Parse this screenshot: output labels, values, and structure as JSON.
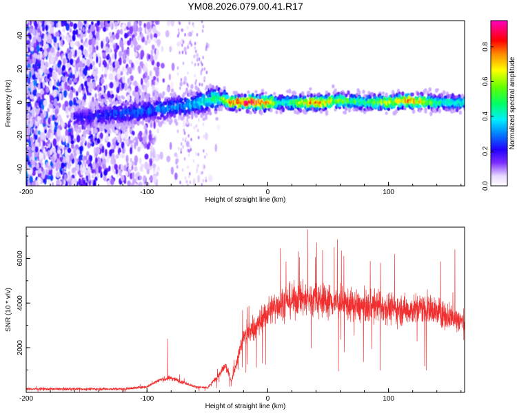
{
  "chart_data": [
    {
      "type": "heatmap",
      "title": "YM08.2026.079.00.41.R17",
      "xlabel": "Height of straight line (km)",
      "ylabel": "Frequency (Hz)",
      "xlim": [
        -200,
        163
      ],
      "ylim": [
        -50,
        49
      ],
      "xticks": [
        -200,
        -100,
        0,
        100
      ],
      "yticks": [
        -40,
        -20,
        0,
        20,
        40
      ],
      "colorbar": {
        "label": "Normalized spectral amplitude",
        "range": [
          0.0,
          0.95
        ],
        "ticks": [
          0.0,
          0.2,
          0.4,
          0.6,
          0.8
        ]
      },
      "ridge": {
        "x": [
          -150,
          -130,
          -110,
          -90,
          -70,
          -50,
          -40,
          -30,
          -10,
          0,
          10,
          20,
          40,
          60,
          80,
          100,
          120,
          140,
          163
        ],
        "frequency": [
          -9,
          -7,
          -6,
          -4,
          -2,
          1,
          3,
          0,
          0,
          0,
          0,
          0,
          0,
          1,
          0,
          0,
          1,
          0,
          0
        ],
        "peak_amplitude": [
          0.22,
          0.28,
          0.3,
          0.32,
          0.35,
          0.45,
          0.55,
          0.9,
          0.95,
          0.92,
          0.5,
          0.55,
          0.9,
          0.6,
          0.55,
          0.7,
          0.88,
          0.5,
          0.45
        ]
      }
    },
    {
      "type": "line",
      "xlabel": "Height of straight line (km)",
      "ylabel": "SNR (10 * v/v)",
      "xlim": [
        -200,
        163
      ],
      "ylim": [
        0,
        7400
      ],
      "xticks": [
        -200,
        -100,
        0,
        100
      ],
      "yticks": [
        2000,
        4000,
        6000
      ],
      "color": "#f03030",
      "series": [
        {
          "name": "SNR",
          "x": [
            -200,
            -180,
            -160,
            -140,
            -120,
            -100,
            -90,
            -80,
            -70,
            -60,
            -50,
            -40,
            -35,
            -30,
            -25,
            -20,
            -15,
            -10,
            -5,
            0,
            10,
            20,
            30,
            40,
            50,
            60,
            70,
            80,
            90,
            100,
            110,
            120,
            130,
            140,
            150,
            160,
            163
          ],
          "baseline": [
            150,
            150,
            150,
            150,
            150,
            250,
            550,
            650,
            450,
            250,
            200,
            800,
            1200,
            500,
            1500,
            2500,
            2700,
            2900,
            3300,
            3600,
            4000,
            4100,
            4200,
            4200,
            4100,
            4000,
            3900,
            3800,
            3900,
            3800,
            3700,
            3700,
            3800,
            3600,
            3400,
            3200,
            3100
          ],
          "peaks": [
            {
              "x": -83,
              "y": 2400
            },
            {
              "x": 33,
              "y": 7300
            },
            {
              "x": 55,
              "y": 6500
            },
            {
              "x": 105,
              "y": 6200
            },
            {
              "x": 155,
              "y": 6400
            }
          ]
        }
      ]
    }
  ]
}
